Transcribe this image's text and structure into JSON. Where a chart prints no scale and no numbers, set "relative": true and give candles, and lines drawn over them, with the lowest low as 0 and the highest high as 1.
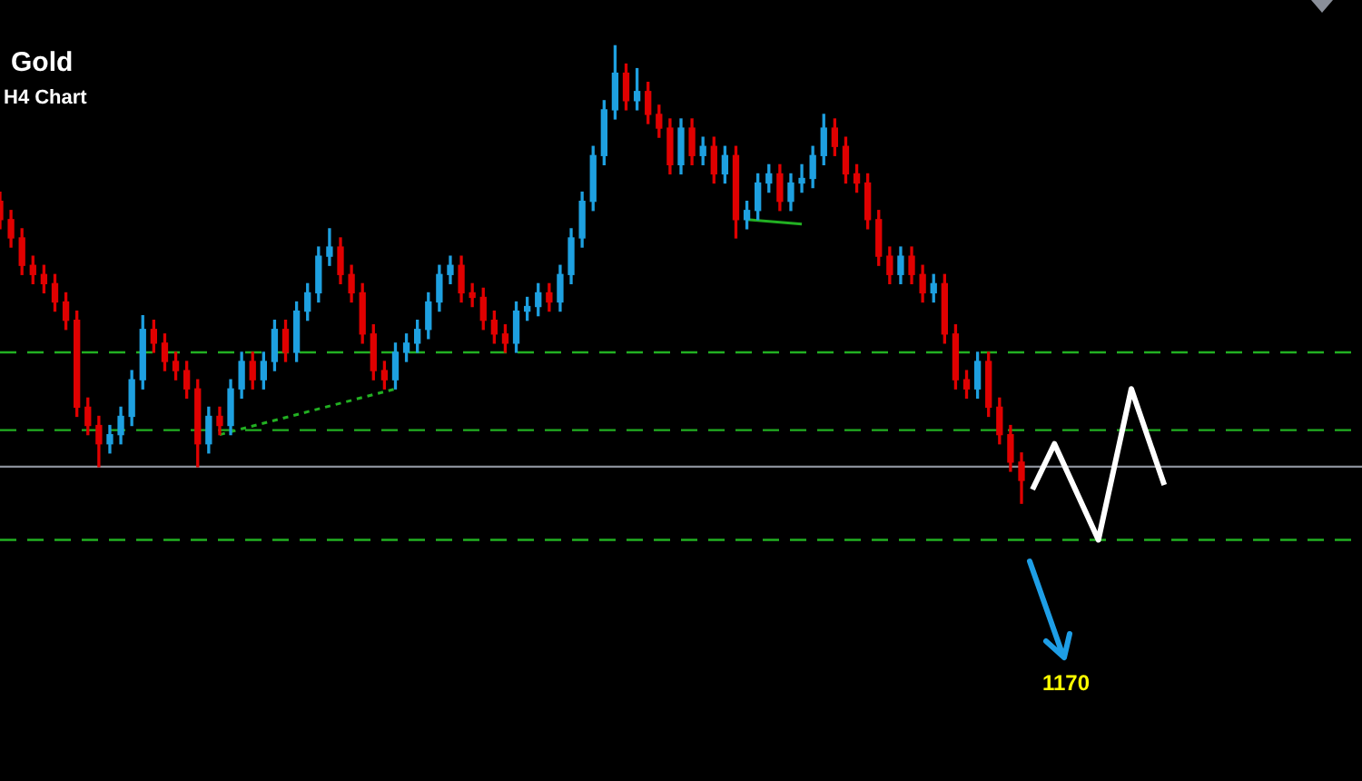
{
  "chart_data": {
    "type": "candlestick",
    "relative": true,
    "title": "Gold",
    "subtitle": "H4 Chart",
    "legend": false,
    "annotations": [
      "1170"
    ],
    "categories": [
      null,
      null,
      null,
      null,
      null,
      null,
      null,
      null,
      null,
      null,
      null,
      null,
      null,
      null,
      null,
      null,
      null,
      null,
      null,
      null,
      null,
      null,
      null,
      null,
      null,
      null,
      null,
      null,
      null,
      null,
      null,
      null,
      null,
      null,
      null,
      null,
      null,
      null,
      null,
      null,
      null,
      null,
      null,
      null,
      null,
      null,
      null,
      null,
      null,
      null,
      null,
      null,
      null,
      null,
      null,
      null,
      null,
      null,
      null,
      null,
      null,
      null,
      null,
      null,
      null,
      null,
      null,
      null,
      null,
      null,
      null,
      null,
      null,
      null,
      null,
      null,
      null,
      null,
      null,
      null,
      null,
      null,
      null,
      null,
      null,
      null,
      null,
      null,
      null,
      null,
      null,
      null,
      null,
      null,
      null,
      null,
      null,
      null,
      null,
      null,
      null,
      null,
      null,
      null,
      null,
      null,
      null,
      null,
      null,
      null,
      null,
      null,
      null,
      null,
      null,
      null,
      null,
      null,
      null,
      null,
      null,
      null,
      null,
      null,
      null
    ],
    "ref_lines": [
      {
        "axis": "y",
        "value": 0.33,
        "color": "#22b022",
        "line_style": "dashed"
      },
      {
        "axis": "y",
        "value": 0.16,
        "color": "#22b022",
        "line_style": "dashed"
      },
      {
        "axis": "y",
        "value": 0.08,
        "color": "#8a8f99",
        "line_style": "solid"
      },
      {
        "axis": "y",
        "value": -0.08,
        "color": "#22b022",
        "line_style": "dashed"
      }
    ],
    "series": [
      {
        "ohlc": [
          [
            0.66,
            0.68,
            0.6,
            0.62
          ],
          [
            0.62,
            0.64,
            0.56,
            0.58
          ],
          [
            0.58,
            0.6,
            0.5,
            0.52
          ],
          [
            0.52,
            0.54,
            0.48,
            0.5
          ],
          [
            0.5,
            0.52,
            0.46,
            0.48
          ],
          [
            0.48,
            0.5,
            0.42,
            0.44
          ],
          [
            0.44,
            0.46,
            0.38,
            0.4
          ],
          [
            0.4,
            0.42,
            0.19,
            0.21
          ],
          [
            0.21,
            0.23,
            0.15,
            0.17
          ],
          [
            0.17,
            0.19,
            0.08,
            0.13
          ],
          [
            0.13,
            0.17,
            0.11,
            0.15
          ],
          [
            0.15,
            0.21,
            0.13,
            0.19
          ],
          [
            0.19,
            0.29,
            0.17,
            0.27
          ],
          [
            0.27,
            0.41,
            0.25,
            0.38
          ],
          [
            0.38,
            0.4,
            0.33,
            0.35
          ],
          [
            0.35,
            0.37,
            0.29,
            0.31
          ],
          [
            0.31,
            0.33,
            0.27,
            0.29
          ],
          [
            0.29,
            0.31,
            0.23,
            0.25
          ],
          [
            0.25,
            0.27,
            0.08,
            0.13
          ],
          [
            0.13,
            0.21,
            0.11,
            0.19
          ],
          [
            0.19,
            0.21,
            0.15,
            0.17
          ],
          [
            0.17,
            0.27,
            0.15,
            0.25
          ],
          [
            0.25,
            0.33,
            0.23,
            0.31
          ],
          [
            0.31,
            0.33,
            0.25,
            0.27
          ],
          [
            0.27,
            0.33,
            0.25,
            0.31
          ],
          [
            0.31,
            0.4,
            0.29,
            0.38
          ],
          [
            0.38,
            0.4,
            0.31,
            0.33
          ],
          [
            0.33,
            0.44,
            0.31,
            0.42
          ],
          [
            0.42,
            0.48,
            0.4,
            0.46
          ],
          [
            0.46,
            0.56,
            0.44,
            0.54
          ],
          [
            0.54,
            0.6,
            0.52,
            0.56
          ],
          [
            0.56,
            0.58,
            0.48,
            0.5
          ],
          [
            0.5,
            0.52,
            0.44,
            0.46
          ],
          [
            0.46,
            0.48,
            0.35,
            0.37
          ],
          [
            0.37,
            0.39,
            0.27,
            0.29
          ],
          [
            0.29,
            0.31,
            0.25,
            0.27
          ],
          [
            0.27,
            0.35,
            0.25,
            0.33
          ],
          [
            0.33,
            0.37,
            0.31,
            0.35
          ],
          [
            0.35,
            0.4,
            0.33,
            0.38
          ],
          [
            0.38,
            0.46,
            0.36,
            0.44
          ],
          [
            0.44,
            0.52,
            0.42,
            0.5
          ],
          [
            0.5,
            0.54,
            0.48,
            0.52
          ],
          [
            0.52,
            0.54,
            0.44,
            0.46
          ],
          [
            0.46,
            0.48,
            0.43,
            0.45
          ],
          [
            0.45,
            0.47,
            0.38,
            0.4
          ],
          [
            0.4,
            0.42,
            0.35,
            0.37
          ],
          [
            0.37,
            0.39,
            0.33,
            0.35
          ],
          [
            0.35,
            0.44,
            0.33,
            0.42
          ],
          [
            0.42,
            0.45,
            0.4,
            0.43
          ],
          [
            0.43,
            0.48,
            0.41,
            0.46
          ],
          [
            0.46,
            0.48,
            0.42,
            0.44
          ],
          [
            0.44,
            0.52,
            0.42,
            0.5
          ],
          [
            0.5,
            0.6,
            0.48,
            0.58
          ],
          [
            0.58,
            0.68,
            0.56,
            0.66
          ],
          [
            0.66,
            0.78,
            0.64,
            0.76
          ],
          [
            0.76,
            0.88,
            0.74,
            0.86
          ],
          [
            0.86,
            1.0,
            0.84,
            0.94
          ],
          [
            0.94,
            0.96,
            0.86,
            0.88
          ],
          [
            0.88,
            0.95,
            0.86,
            0.9
          ],
          [
            0.9,
            0.92,
            0.83,
            0.85
          ],
          [
            0.85,
            0.87,
            0.8,
            0.82
          ],
          [
            0.82,
            0.84,
            0.72,
            0.74
          ],
          [
            0.74,
            0.84,
            0.72,
            0.82
          ],
          [
            0.82,
            0.84,
            0.74,
            0.76
          ],
          [
            0.76,
            0.8,
            0.74,
            0.78
          ],
          [
            0.78,
            0.8,
            0.7,
            0.72
          ],
          [
            0.72,
            0.78,
            0.7,
            0.76
          ],
          [
            0.76,
            0.78,
            0.58,
            0.62
          ],
          [
            0.62,
            0.66,
            0.6,
            0.64
          ],
          [
            0.64,
            0.72,
            0.62,
            0.7
          ],
          [
            0.7,
            0.74,
            0.68,
            0.72
          ],
          [
            0.72,
            0.74,
            0.64,
            0.66
          ],
          [
            0.66,
            0.72,
            0.64,
            0.7
          ],
          [
            0.7,
            0.74,
            0.68,
            0.71
          ],
          [
            0.71,
            0.78,
            0.69,
            0.76
          ],
          [
            0.76,
            0.85,
            0.74,
            0.82
          ],
          [
            0.82,
            0.84,
            0.76,
            0.78
          ],
          [
            0.78,
            0.8,
            0.7,
            0.72
          ],
          [
            0.72,
            0.74,
            0.68,
            0.7
          ],
          [
            0.7,
            0.72,
            0.6,
            0.62
          ],
          [
            0.62,
            0.64,
            0.52,
            0.54
          ],
          [
            0.54,
            0.56,
            0.48,
            0.5
          ],
          [
            0.5,
            0.56,
            0.48,
            0.54
          ],
          [
            0.54,
            0.56,
            0.48,
            0.5
          ],
          [
            0.5,
            0.52,
            0.44,
            0.46
          ],
          [
            0.46,
            0.5,
            0.44,
            0.48
          ],
          [
            0.48,
            0.5,
            0.35,
            0.37
          ],
          [
            0.37,
            0.39,
            0.25,
            0.27
          ],
          [
            0.27,
            0.29,
            0.23,
            0.25
          ],
          [
            0.25,
            0.33,
            0.23,
            0.31
          ],
          [
            0.31,
            0.33,
            0.19,
            0.21
          ],
          [
            0.21,
            0.23,
            0.13,
            0.15
          ],
          [
            0.15,
            0.17,
            0.07,
            0.09
          ],
          [
            0.09,
            0.11,
            0,
            0.05
          ],
          null,
          null,
          null,
          null,
          null,
          null,
          null,
          null,
          null,
          null,
          null,
          null,
          null,
          null,
          null,
          null,
          null,
          null,
          null,
          null,
          null,
          null,
          null,
          null,
          null,
          null,
          null,
          null,
          null,
          null,
          null
        ],
        "colors": [
          "#e00000",
          "#e00000",
          "#e00000",
          "#e00000",
          "#e00000",
          "#e00000",
          "#e00000",
          "#e00000",
          "#e00000",
          "#e00000",
          "#1ea0e0",
          "#1ea0e0",
          "#1ea0e0",
          "#1ea0e0",
          "#e00000",
          "#e00000",
          "#e00000",
          "#e00000",
          "#e00000",
          "#1ea0e0",
          "#e00000",
          "#1ea0e0",
          "#1ea0e0",
          "#e00000",
          "#1ea0e0",
          "#1ea0e0",
          "#e00000",
          "#1ea0e0",
          "#1ea0e0",
          "#1ea0e0",
          "#1ea0e0",
          "#e00000",
          "#e00000",
          "#e00000",
          "#e00000",
          "#e00000",
          "#1ea0e0",
          "#1ea0e0",
          "#1ea0e0",
          "#1ea0e0",
          "#1ea0e0",
          "#1ea0e0",
          "#e00000",
          "#e00000",
          "#e00000",
          "#e00000",
          "#e00000",
          "#1ea0e0",
          "#1ea0e0",
          "#1ea0e0",
          "#e00000",
          "#1ea0e0",
          "#1ea0e0",
          "#1ea0e0",
          "#1ea0e0",
          "#1ea0e0",
          "#1ea0e0",
          "#e00000",
          "#1ea0e0",
          "#e00000",
          "#e00000",
          "#e00000",
          "#1ea0e0",
          "#e00000",
          "#1ea0e0",
          "#e00000",
          "#1ea0e0",
          "#e00000",
          "#1ea0e0",
          "#1ea0e0",
          "#1ea0e0",
          "#e00000",
          "#1ea0e0",
          "#1ea0e0",
          "#1ea0e0",
          "#1ea0e0",
          "#e00000",
          "#e00000",
          "#e00000",
          "#e00000",
          "#e00000",
          "#e00000",
          "#1ea0e0",
          "#e00000",
          "#e00000",
          "#1ea0e0",
          "#e00000",
          "#e00000",
          "#e00000",
          "#1ea0e0",
          "#e00000",
          "#e00000",
          "#e00000",
          "#e00000",
          null,
          null,
          null,
          null,
          null,
          null,
          null,
          null,
          null,
          null,
          null,
          null,
          null,
          null,
          null,
          null,
          null,
          null,
          null,
          null,
          null,
          null,
          null,
          null,
          null,
          null,
          null,
          null,
          null,
          null,
          null
        ]
      },
      {
        "type": "line",
        "color": "#ffffff",
        "line_style": "solid",
        "values": [
          null,
          null,
          null,
          null,
          null,
          null,
          null,
          null,
          null,
          null,
          null,
          null,
          null,
          null,
          null,
          null,
          null,
          null,
          null,
          null,
          null,
          null,
          null,
          null,
          null,
          null,
          null,
          null,
          null,
          null,
          null,
          null,
          null,
          null,
          null,
          null,
          null,
          null,
          null,
          null,
          null,
          null,
          null,
          null,
          null,
          null,
          null,
          null,
          null,
          null,
          null,
          null,
          null,
          null,
          null,
          null,
          null,
          null,
          null,
          null,
          null,
          null,
          null,
          null,
          null,
          null,
          null,
          null,
          null,
          null,
          null,
          null,
          null,
          null,
          null,
          null,
          null,
          null,
          null,
          null,
          null,
          null,
          null,
          null,
          null,
          null,
          null,
          null,
          null,
          null,
          null,
          null,
          null,
          null,
          0.03,
          null,
          0.13,
          null,
          null,
          null,
          -0.08,
          null,
          null,
          0.25,
          null,
          null,
          0.04,
          null,
          null,
          null,
          null,
          null,
          null,
          null,
          null,
          null,
          null,
          null,
          null,
          null,
          null,
          null,
          null,
          null,
          null
        ]
      },
      {
        "type": "line",
        "color": "#22b022",
        "line_style": "dotted",
        "values": [
          null,
          null,
          null,
          null,
          null,
          null,
          null,
          null,
          null,
          null,
          null,
          null,
          null,
          null,
          null,
          null,
          null,
          null,
          null,
          null,
          0.15,
          null,
          null,
          null,
          null,
          null,
          null,
          null,
          null,
          null,
          null,
          null,
          null,
          null,
          null,
          null,
          0.25,
          null,
          null,
          null,
          null,
          null,
          null,
          null,
          null,
          null,
          null,
          null,
          null,
          null,
          null,
          null,
          null,
          null,
          null,
          null,
          null,
          null,
          null,
          null,
          null,
          null,
          null,
          null,
          null,
          null,
          null,
          null,
          null,
          null,
          null,
          null,
          null,
          null,
          null,
          null,
          null,
          null,
          null,
          null,
          null,
          null,
          null,
          null,
          null,
          null,
          null,
          null,
          null,
          null,
          null,
          null,
          null,
          null,
          null,
          null,
          null,
          null,
          null,
          null,
          null,
          null,
          null,
          null,
          null,
          null,
          null,
          null,
          null,
          null,
          null,
          null,
          null,
          null,
          null,
          null,
          null,
          null,
          null,
          null,
          null,
          null,
          null,
          null,
          null
        ]
      },
      {
        "type": "line",
        "color": "#22b022",
        "line_style": "solid",
        "values": [
          null,
          null,
          null,
          null,
          null,
          null,
          null,
          null,
          null,
          null,
          null,
          null,
          null,
          null,
          null,
          null,
          null,
          null,
          null,
          null,
          null,
          null,
          null,
          null,
          null,
          null,
          null,
          null,
          null,
          null,
          null,
          null,
          null,
          null,
          null,
          null,
          null,
          null,
          null,
          null,
          null,
          null,
          null,
          null,
          null,
          null,
          null,
          null,
          null,
          null,
          null,
          null,
          null,
          null,
          null,
          null,
          null,
          null,
          null,
          null,
          null,
          null,
          null,
          null,
          null,
          null,
          null,
          null,
          0.62,
          null,
          null,
          null,
          null,
          0.61,
          null,
          null,
          null,
          null,
          null,
          null,
          null,
          null,
          null,
          null,
          null,
          null,
          null,
          null,
          null,
          null,
          null,
          null,
          null,
          null,
          null,
          null,
          null,
          null,
          null,
          null,
          null,
          null,
          null,
          null,
          null,
          null,
          null,
          null,
          null,
          null,
          null,
          null,
          null,
          null,
          null,
          null,
          null,
          null,
          null,
          null,
          null,
          null,
          null,
          null,
          null
        ]
      }
    ]
  }
}
